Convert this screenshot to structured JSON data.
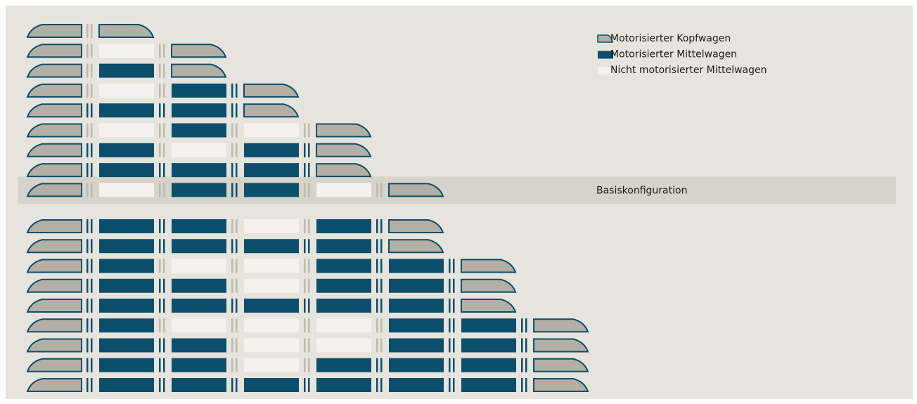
{
  "legend": [
    {
      "type": "H",
      "label": "Motorisierter Kopfwagen"
    },
    {
      "type": "M",
      "label": "Motorisierter Mittelwagen"
    },
    {
      "type": "N",
      "label": "Nicht motorisierter Mittelwagen"
    }
  ],
  "base_label": "Basiskonfiguration",
  "base_row": 8,
  "rows": [
    [
      "H",
      "H"
    ],
    [
      "H",
      "N",
      "H"
    ],
    [
      "H",
      "M",
      "H"
    ],
    [
      "H",
      "N",
      "M",
      "H"
    ],
    [
      "H",
      "M",
      "M",
      "H"
    ],
    [
      "H",
      "N",
      "M",
      "N",
      "H"
    ],
    [
      "H",
      "M",
      "N",
      "M",
      "H"
    ],
    [
      "H",
      "M",
      "M",
      "M",
      "H"
    ],
    [
      "H",
      "N",
      "M",
      "M",
      "N",
      "H"
    ],
    [
      "H",
      "M",
      "M",
      "N",
      "M",
      "H"
    ],
    [
      "H",
      "M",
      "M",
      "M",
      "M",
      "H"
    ],
    [
      "H",
      "M",
      "N",
      "N",
      "M",
      "M",
      "H"
    ],
    [
      "H",
      "M",
      "M",
      "N",
      "M",
      "M",
      "H"
    ],
    [
      "H",
      "M",
      "M",
      "M",
      "M",
      "M",
      "H"
    ],
    [
      "H",
      "M",
      "N",
      "N",
      "N",
      "M",
      "M",
      "H"
    ],
    [
      "H",
      "M",
      "M",
      "N",
      "N",
      "M",
      "M",
      "H"
    ],
    [
      "H",
      "M",
      "M",
      "N",
      "M",
      "M",
      "M",
      "H"
    ],
    [
      "H",
      "M",
      "M",
      "M",
      "M",
      "M",
      "M",
      "H"
    ]
  ]
}
